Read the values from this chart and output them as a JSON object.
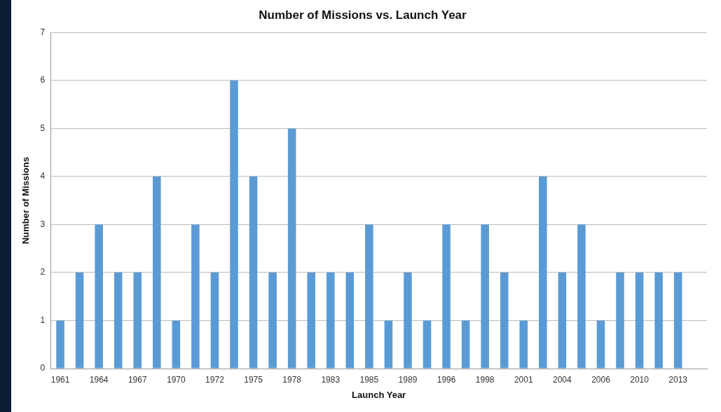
{
  "chart_data": {
    "type": "bar",
    "title": "Number of Missions vs. Launch Year",
    "xlabel": "Launch Year",
    "ylabel": "Number of Missions",
    "categories": [
      "1961",
      null,
      "1964",
      null,
      "1967",
      null,
      "1970",
      null,
      "1972",
      null,
      "1975",
      null,
      "1978",
      null,
      "1983",
      null,
      "1985",
      null,
      "1989",
      null,
      "1996",
      null,
      "1998",
      null,
      "2001",
      null,
      "2004",
      null,
      "2006",
      null,
      "2010",
      null,
      "2013",
      null
    ],
    "values": [
      1,
      2,
      3,
      2,
      2,
      4,
      1,
      3,
      2,
      6,
      4,
      2,
      5,
      2,
      2,
      2,
      3,
      1,
      2,
      1,
      3,
      1,
      3,
      2,
      1,
      4,
      2,
      3,
      1,
      2,
      2,
      2,
      2,
      null
    ],
    "color": "#5b9bd5",
    "ylim": [
      0,
      7
    ],
    "yticks": [
      0,
      1,
      2,
      3,
      4,
      5,
      6,
      7
    ],
    "grid": "y",
    "legend": false
  }
}
